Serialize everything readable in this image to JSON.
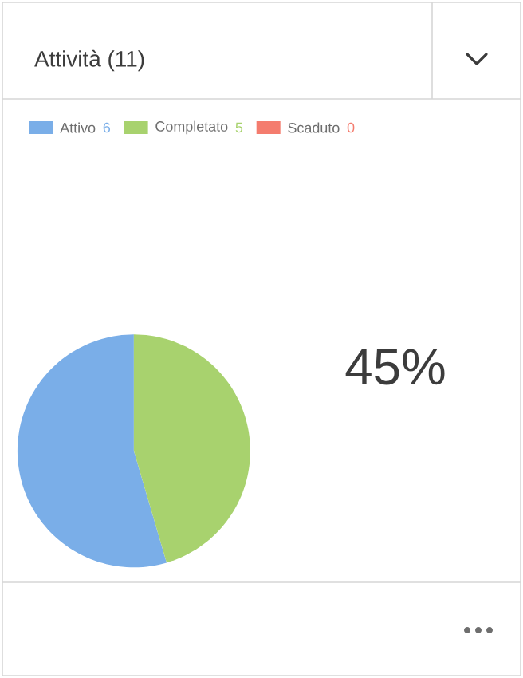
{
  "chart_data": {
    "type": "pie",
    "title": "Attività (11)",
    "categories": [
      "Attivo",
      "Completato",
      "Scaduto"
    ],
    "values": [
      6,
      5,
      0
    ],
    "value_labels": [
      "6",
      "5",
      "0"
    ],
    "colors": [
      "#7aaee8",
      "#a8d26e",
      "#f47c6e"
    ],
    "legend": "top",
    "annotations": [
      "45%"
    ]
  }
}
